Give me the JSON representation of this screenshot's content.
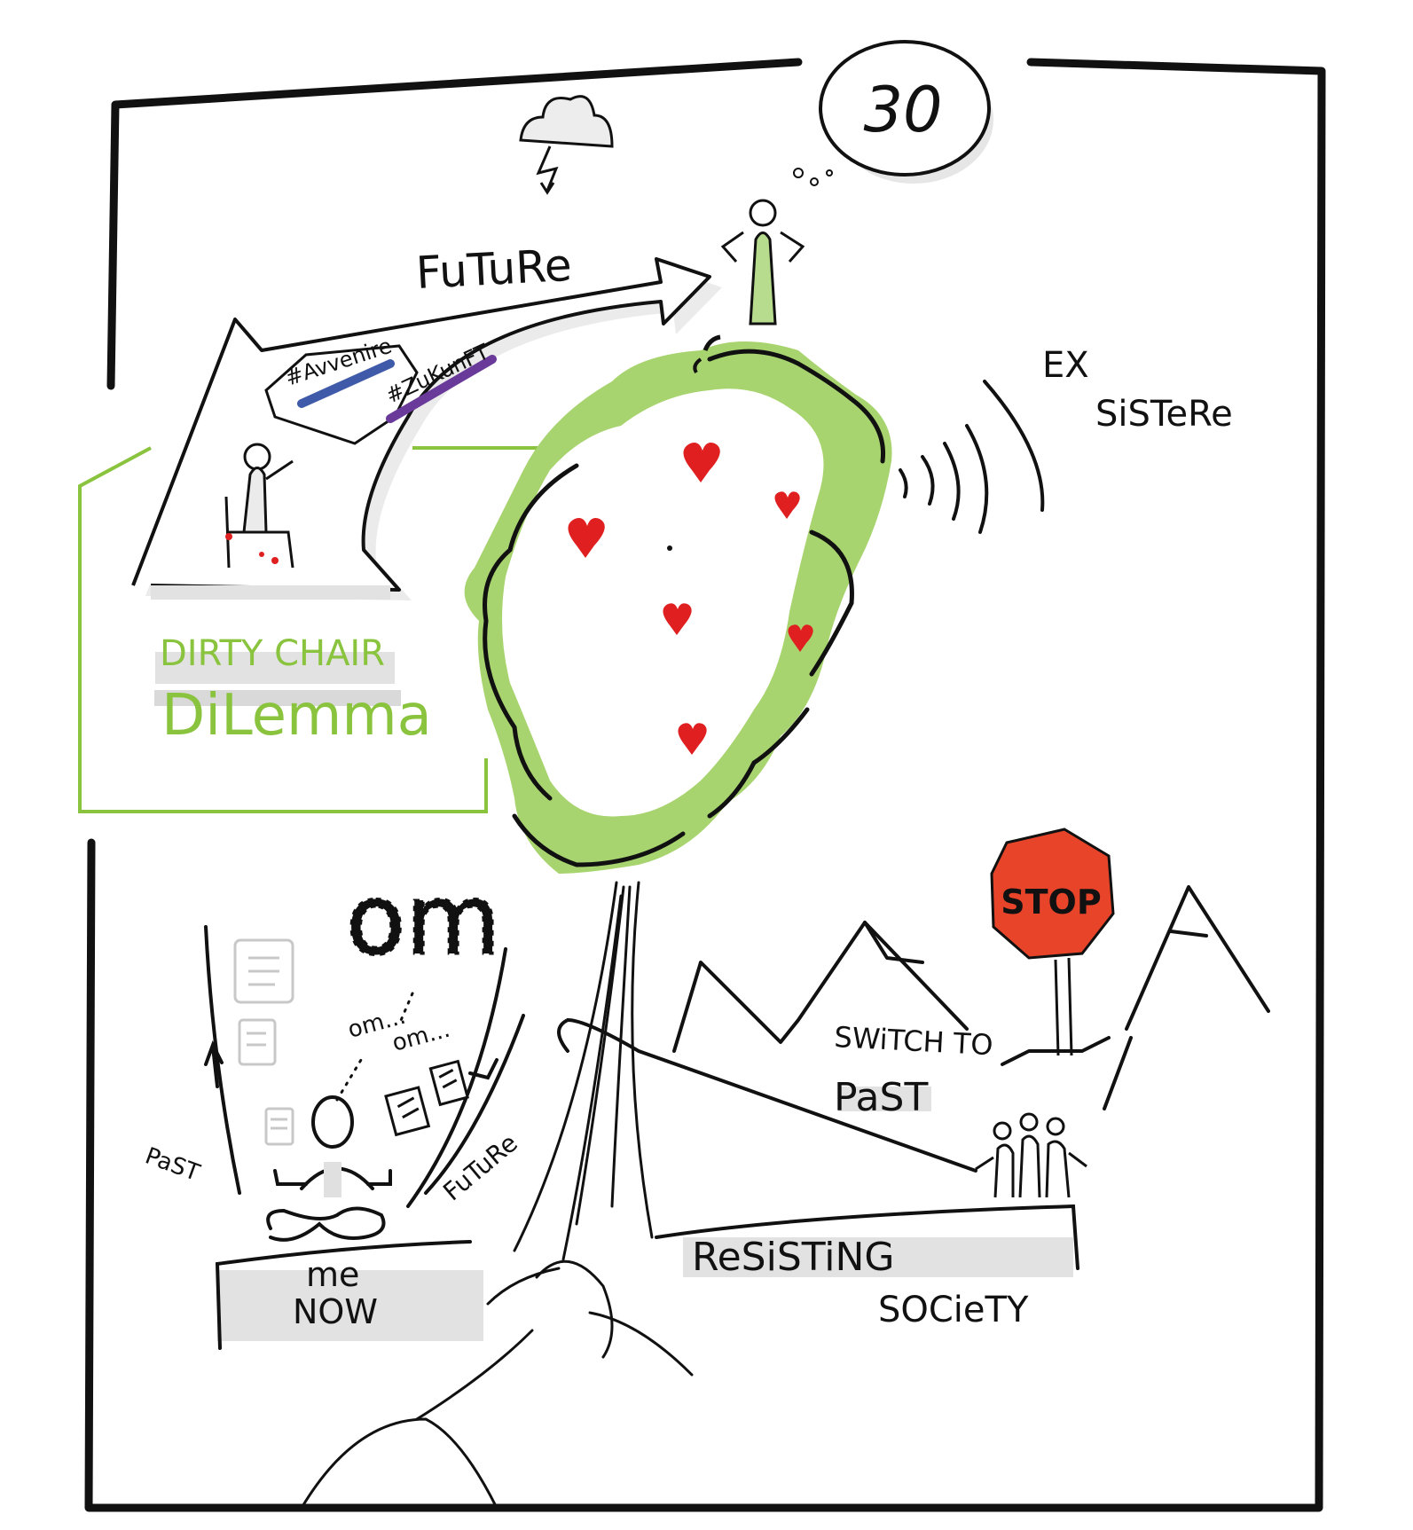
{
  "title_block": {
    "line1": "DIRTY CHAIR",
    "line2": "DiLemma"
  },
  "labels": {
    "future_arrow": "FuTuRe",
    "hashtag_1": "#Avvenire",
    "hashtag_2": "#ZuKunFT",
    "age_bubble": "30",
    "ex_sistere_1": "EX",
    "ex_sistere_2": "SiSTeRe",
    "stop_sign": "STOP",
    "switch_to": "SWiTCH TO",
    "past_mountain": "PaST",
    "resisting": "ReSiSTiNG",
    "society": "SOCieTY",
    "me": "me",
    "now": "NOW",
    "past_side": "PaST",
    "future_side": "FuTuRe",
    "om_big": "om",
    "om_small_1": "om...",
    "om_small_2": "om..."
  },
  "colors": {
    "ink": "#111111",
    "green": "#8ac43f",
    "green_light": "#a8d46f",
    "heart_red": "#e02020",
    "stop_red": "#e8442a",
    "shadow_gray": "#d9d9d9",
    "hashtag_blue": "#3f5aa8",
    "hashtag_purple": "#6a3a9a"
  }
}
